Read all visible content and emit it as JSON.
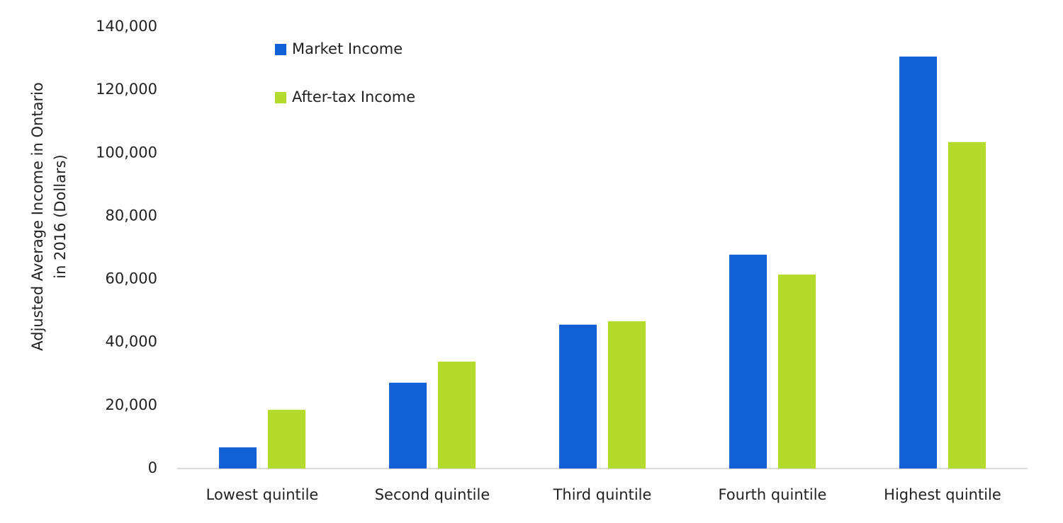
{
  "chart_data": {
    "type": "bar",
    "ylabel": [
      "Adjusted Average Income in Ontario",
      "in 2016 (Dollars)"
    ],
    "categories": [
      "Lowest quintile",
      "Second quintile",
      "Third quintile",
      "Fourth quintile",
      "Highest quintile"
    ],
    "series": [
      {
        "name": "Market Income",
        "color": "#1160d6",
        "values": [
          6700,
          27200,
          45600,
          67800,
          130600
        ]
      },
      {
        "name": "After-tax Income",
        "color": "#b4da2b",
        "values": [
          18600,
          33900,
          46700,
          61500,
          103500
        ]
      }
    ],
    "ylim": [
      0,
      140000
    ],
    "yticks": [
      0,
      {
        "value": 20000,
        "label": "20,000"
      },
      {
        "value": 40000,
        "label": "40,000"
      },
      {
        "value": 60000,
        "label": "60,000"
      },
      {
        "value": 80000,
        "label": "80,000"
      },
      {
        "value": 100000,
        "label": "100,000"
      },
      {
        "value": 120000,
        "label": "120,000"
      },
      {
        "value": 140000,
        "label": "140,000"
      }
    ],
    "grid": false,
    "legend": "top-left"
  }
}
